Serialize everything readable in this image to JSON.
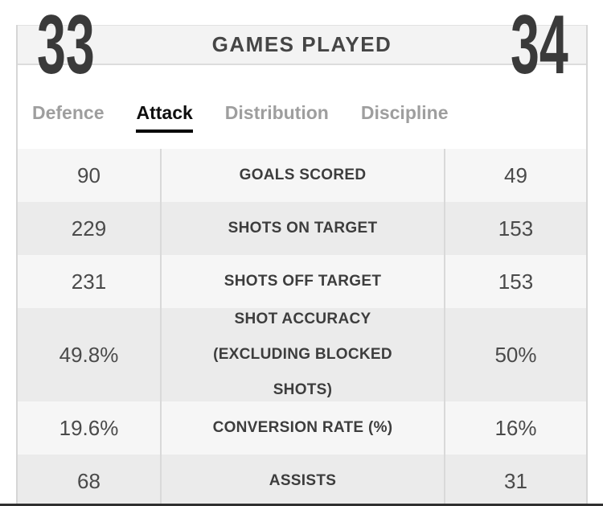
{
  "header": {
    "home_games_played": "33",
    "title": "GAMES PLAYED",
    "away_games_played": "34"
  },
  "tabs": [
    {
      "label": "Defence",
      "active": false
    },
    {
      "label": "Attack",
      "active": true
    },
    {
      "label": "Distribution",
      "active": false
    },
    {
      "label": "Discipline",
      "active": false
    }
  ],
  "stats": [
    {
      "home": "90",
      "label": "GOALS SCORED",
      "away": "49"
    },
    {
      "home": "229",
      "label": "SHOTS ON TARGET",
      "away": "153"
    },
    {
      "home": "231",
      "label": "SHOTS OFF TARGET",
      "away": "153"
    },
    {
      "home": "49.8%",
      "label": "SHOT ACCURACY (EXCLUDING BLOCKED SHOTS)",
      "away": "50%"
    },
    {
      "home": "19.6%",
      "label": "CONVERSION RATE (%)",
      "away": "16%"
    },
    {
      "home": "68",
      "label": "ASSISTS",
      "away": "31"
    }
  ],
  "colors": {
    "active_tab": "#0f0f0f",
    "inactive_tab": "#9e9e9e",
    "row_light": "#f6f6f6",
    "row_dark": "#ebebeb"
  }
}
